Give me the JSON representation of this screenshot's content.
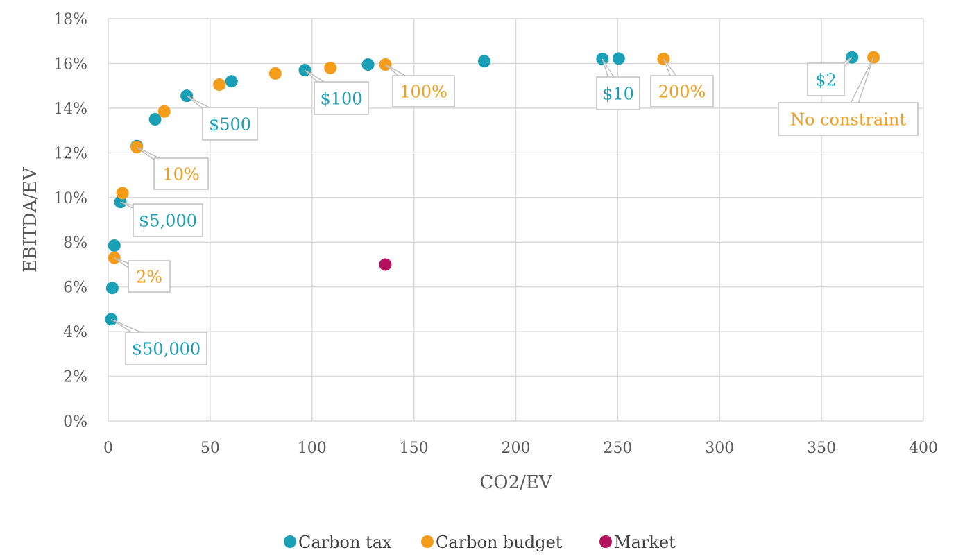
{
  "chart_data": {
    "type": "scatter",
    "xlabel": "CO2/EV",
    "ylabel": "EBITDA/EV",
    "xlim": [
      0,
      400
    ],
    "ylim": [
      0,
      18
    ],
    "x_ticks": [
      "0",
      "50",
      "100",
      "150",
      "200",
      "250",
      "300",
      "350",
      "400"
    ],
    "y_ticks": [
      "0%",
      "2%",
      "4%",
      "6%",
      "8%",
      "10%",
      "12%",
      "14%",
      "16%",
      "18%"
    ],
    "grid": true,
    "legend_position": "bottom",
    "series": [
      {
        "name": "Carbon tax",
        "color": "#1aa0b6",
        "points": [
          {
            "x": 1.5,
            "y": 4.55
          },
          {
            "x": 2.0,
            "y": 5.95
          },
          {
            "x": 3.0,
            "y": 7.85
          },
          {
            "x": 6.0,
            "y": 9.8
          },
          {
            "x": 14.0,
            "y": 12.3
          },
          {
            "x": 23.0,
            "y": 13.5
          },
          {
            "x": 38.5,
            "y": 14.55
          },
          {
            "x": 60.5,
            "y": 15.2
          },
          {
            "x": 96.5,
            "y": 15.7
          },
          {
            "x": 127.5,
            "y": 15.95
          },
          {
            "x": 184.5,
            "y": 16.1
          },
          {
            "x": 242.5,
            "y": 16.2
          },
          {
            "x": 250.5,
            "y": 16.22
          },
          {
            "x": 365.0,
            "y": 16.27
          }
        ]
      },
      {
        "name": "Carbon budget",
        "color": "#f59c1a",
        "points": [
          {
            "x": 3.0,
            "y": 7.3
          },
          {
            "x": 7.0,
            "y": 10.2
          },
          {
            "x": 14.0,
            "y": 12.25
          },
          {
            "x": 27.5,
            "y": 13.85
          },
          {
            "x": 54.5,
            "y": 15.05
          },
          {
            "x": 82.0,
            "y": 15.55
          },
          {
            "x": 109.0,
            "y": 15.8
          },
          {
            "x": 136.0,
            "y": 15.95
          },
          {
            "x": 272.5,
            "y": 16.2
          },
          {
            "x": 375.5,
            "y": 16.27
          }
        ]
      },
      {
        "name": "Market",
        "color": "#b3105e",
        "points": [
          {
            "x": 136.0,
            "y": 7.0
          }
        ]
      }
    ],
    "annotations": [
      {
        "text": "$50,000",
        "series": "Carbon tax",
        "x": 1.5,
        "y": 4.55
      },
      {
        "text": "2%",
        "series": "Carbon budget",
        "x": 3.0,
        "y": 7.3
      },
      {
        "text": "$5,000",
        "series": "Carbon tax",
        "x": 6.0,
        "y": 9.8
      },
      {
        "text": "10%",
        "series": "Carbon budget",
        "x": 14.0,
        "y": 12.25
      },
      {
        "text": "$500",
        "series": "Carbon tax",
        "x": 38.5,
        "y": 14.55
      },
      {
        "text": "$100",
        "series": "Carbon tax",
        "x": 96.5,
        "y": 15.7
      },
      {
        "text": "100%",
        "series": "Carbon budget",
        "x": 136.0,
        "y": 15.95
      },
      {
        "text": "$10",
        "series": "Carbon tax",
        "x": 242.5,
        "y": 16.2
      },
      {
        "text": "200%",
        "series": "Carbon budget",
        "x": 272.5,
        "y": 16.2
      },
      {
        "text": "$2",
        "series": "Carbon tax",
        "x": 365.0,
        "y": 16.27
      },
      {
        "text": "No constraint",
        "series": "Carbon budget",
        "x": 375.5,
        "y": 16.27
      }
    ]
  }
}
